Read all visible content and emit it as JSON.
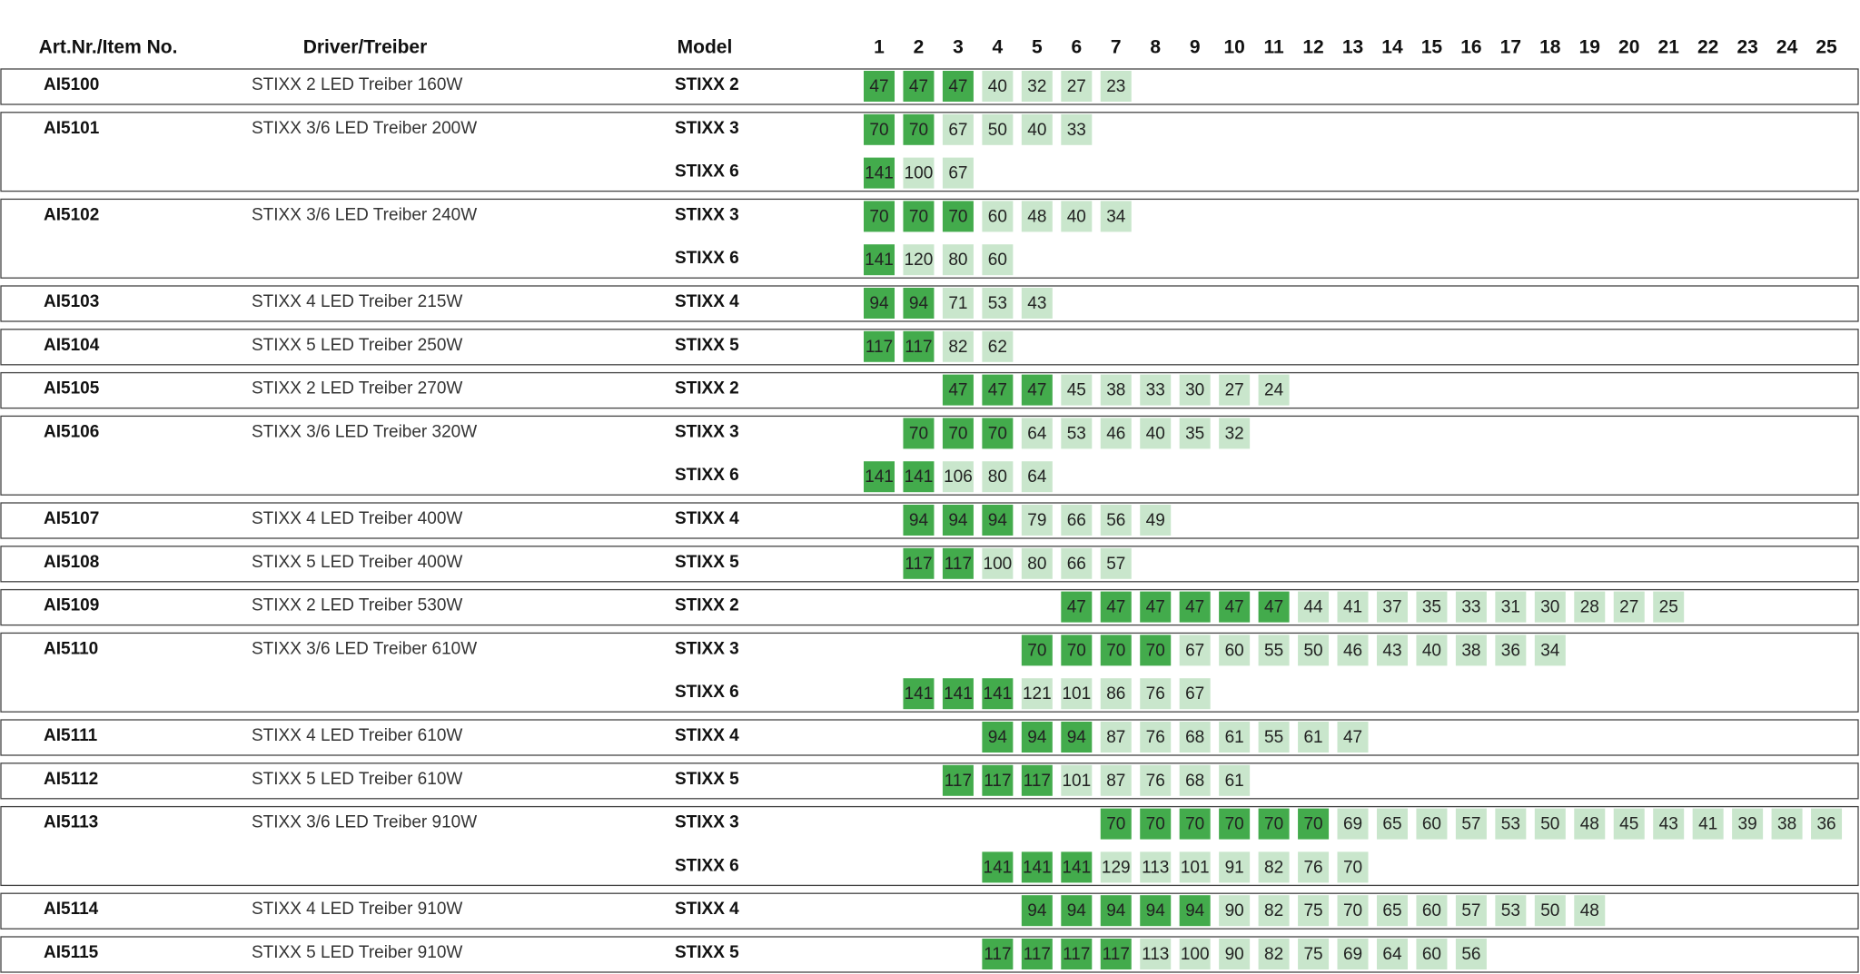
{
  "header": {
    "item": "Art.Nr./Item No.",
    "driver": "Driver/Treiber",
    "model": "Model",
    "columns": [
      "1",
      "2",
      "3",
      "4",
      "5",
      "6",
      "7",
      "8",
      "9",
      "10",
      "11",
      "12",
      "13",
      "14",
      "15",
      "16",
      "17",
      "18",
      "19",
      "20",
      "21",
      "22",
      "23",
      "24",
      "25"
    ]
  },
  "groups": [
    {
      "item": "AI5100",
      "driver": "STIXX 2 LED Treiber 160W",
      "rows": [
        {
          "model": "STIXX 2",
          "values": [
            47,
            47,
            47,
            40,
            32,
            27,
            23
          ],
          "dark": 3
        }
      ]
    },
    {
      "item": "AI5101",
      "driver": "STIXX 3/6 LED Treiber 200W",
      "rows": [
        {
          "model": "STIXX 3",
          "values": [
            70,
            70,
            67,
            50,
            40,
            33
          ],
          "dark": 2
        },
        {
          "model": "STIXX 6",
          "values": [
            141,
            100,
            67
          ],
          "dark": 1
        }
      ]
    },
    {
      "item": "AI5102",
      "driver": "STIXX 3/6 LED Treiber 240W",
      "rows": [
        {
          "model": "STIXX 3",
          "values": [
            70,
            70,
            70,
            60,
            48,
            40,
            34
          ],
          "dark": 3
        },
        {
          "model": "STIXX 6",
          "values": [
            141,
            120,
            80,
            60
          ],
          "dark": 1
        }
      ]
    },
    {
      "item": "AI5103",
      "driver": "STIXX 4 LED Treiber 215W",
      "rows": [
        {
          "model": "STIXX 4",
          "values": [
            94,
            94,
            71,
            53,
            43
          ],
          "dark": 2
        }
      ]
    },
    {
      "item": "AI5104",
      "driver": "STIXX 5 LED Treiber 250W",
      "rows": [
        {
          "model": "STIXX 5",
          "values": [
            117,
            117,
            82,
            62
          ],
          "dark": 2
        }
      ]
    },
    {
      "item": "AI5105",
      "driver": "STIXX 2 LED Treiber 270W",
      "rows": [
        {
          "model": "STIXX 2",
          "values": [
            null,
            null,
            47,
            47,
            47,
            45,
            38,
            33,
            30,
            27,
            24
          ],
          "dark": 3
        }
      ]
    },
    {
      "item": "AI5106",
      "driver": "STIXX 3/6 LED Treiber 320W",
      "rows": [
        {
          "model": "STIXX 3",
          "values": [
            null,
            70,
            70,
            70,
            64,
            53,
            46,
            40,
            35,
            32
          ],
          "dark": 3
        },
        {
          "model": "STIXX 6",
          "values": [
            141,
            141,
            106,
            80,
            64
          ],
          "dark": 2
        }
      ]
    },
    {
      "item": "AI5107",
      "driver": "STIXX 4 LED Treiber 400W",
      "rows": [
        {
          "model": "STIXX 4",
          "values": [
            null,
            94,
            94,
            94,
            79,
            66,
            56,
            49
          ],
          "dark": 3
        }
      ]
    },
    {
      "item": "AI5108",
      "driver": "STIXX 5 LED Treiber 400W",
      "rows": [
        {
          "model": "STIXX 5",
          "values": [
            null,
            117,
            117,
            100,
            80,
            66,
            57
          ],
          "dark": 2
        }
      ]
    },
    {
      "item": "AI5109",
      "driver": "STIXX 2 LED Treiber 530W",
      "rows": [
        {
          "model": "STIXX 2",
          "values": [
            null,
            null,
            null,
            null,
            null,
            47,
            47,
            47,
            47,
            47,
            47,
            44,
            41,
            37,
            35,
            33,
            31,
            30,
            28,
            27,
            25
          ],
          "dark": 6
        }
      ]
    },
    {
      "item": "AI5110",
      "driver": "STIXX 3/6 LED Treiber 610W",
      "rows": [
        {
          "model": "STIXX 3",
          "values": [
            null,
            null,
            null,
            null,
            70,
            70,
            70,
            70,
            67,
            60,
            55,
            50,
            46,
            43,
            40,
            38,
            36,
            34
          ],
          "dark": 4
        },
        {
          "model": "STIXX 6",
          "values": [
            null,
            141,
            141,
            141,
            121,
            101,
            86,
            76,
            67
          ],
          "dark": 3
        }
      ]
    },
    {
      "item": "AI5111",
      "driver": "STIXX 4 LED Treiber 610W",
      "rows": [
        {
          "model": "STIXX 4",
          "values": [
            null,
            null,
            null,
            94,
            94,
            94,
            87,
            76,
            68,
            61,
            55,
            61,
            47
          ],
          "dark": 3
        }
      ]
    },
    {
      "item": "AI5112",
      "driver": "STIXX 5 LED Treiber 610W",
      "rows": [
        {
          "model": "STIXX 5",
          "values": [
            null,
            null,
            117,
            117,
            117,
            101,
            87,
            76,
            68,
            61
          ],
          "dark": 3
        }
      ]
    },
    {
      "item": "AI5113",
      "driver": "STIXX 3/6 LED Treiber 910W",
      "rows": [
        {
          "model": "STIXX 3",
          "values": [
            null,
            null,
            null,
            null,
            null,
            null,
            70,
            70,
            70,
            70,
            70,
            70,
            69,
            65,
            60,
            57,
            53,
            50,
            48,
            45,
            43,
            41,
            39,
            38,
            36
          ],
          "dark": 6
        },
        {
          "model": "STIXX 6",
          "values": [
            null,
            null,
            null,
            141,
            141,
            141,
            129,
            113,
            101,
            91,
            82,
            76,
            70
          ],
          "dark": 3
        }
      ]
    },
    {
      "item": "AI5114",
      "driver": "STIXX 4 LED Treiber 910W",
      "rows": [
        {
          "model": "STIXX 4",
          "values": [
            null,
            null,
            null,
            null,
            94,
            94,
            94,
            94,
            94,
            90,
            82,
            75,
            70,
            65,
            60,
            57,
            53,
            50,
            48
          ],
          "dark": 5
        }
      ]
    },
    {
      "item": "AI5115",
      "driver": "STIXX 5 LED Treiber 910W",
      "rows": [
        {
          "model": "STIXX 5",
          "values": [
            null,
            null,
            null,
            117,
            117,
            117,
            117,
            113,
            100,
            90,
            82,
            75,
            69,
            64,
            60,
            56
          ],
          "dark": 4
        }
      ]
    }
  ]
}
